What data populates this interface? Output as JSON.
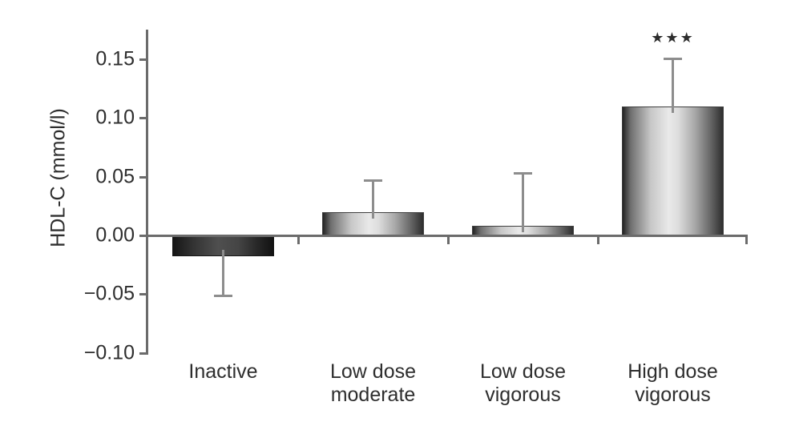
{
  "chart_data": {
    "type": "bar",
    "title": "",
    "xlabel": "",
    "ylabel": "HDL-C (mmol/l)",
    "categories": [
      "Inactive",
      "Low dose moderate",
      "Low dose vigorous",
      "High dose vigorous"
    ],
    "category_label_lines": [
      [
        "Inactive"
      ],
      [
        "Low dose",
        "moderate"
      ],
      [
        "Low dose",
        "vigorous"
      ],
      [
        "High dose",
        "vigorous"
      ]
    ],
    "values": [
      -0.018,
      0.02,
      0.008,
      0.11
    ],
    "errors": [
      0.033,
      0.027,
      0.045,
      0.041
    ],
    "error_direction": "away-from-zero",
    "bar_styles": [
      "dark",
      "light",
      "light",
      "light"
    ],
    "y_ticks": [
      0.15,
      0.1,
      0.05,
      0.0,
      -0.05,
      -0.1
    ],
    "y_tick_labels": [
      "0.15",
      "0.10",
      "0.05",
      "0.00",
      "−0.05",
      "−0.10"
    ],
    "ylim": [
      -0.1,
      0.175
    ],
    "grid": false,
    "legend": null,
    "annotations": [
      {
        "category_index": 3,
        "text": "★★★"
      }
    ]
  },
  "colors": {
    "background": "#ffffff",
    "axis": "#6b6b6b",
    "error_bar": "#8d8d8d",
    "text": "#2e2e2e",
    "bar_dark_mid": "#4f4f4f",
    "bar_light_mid": "#e9e9e9",
    "annotation": "#2d2d2d"
  }
}
